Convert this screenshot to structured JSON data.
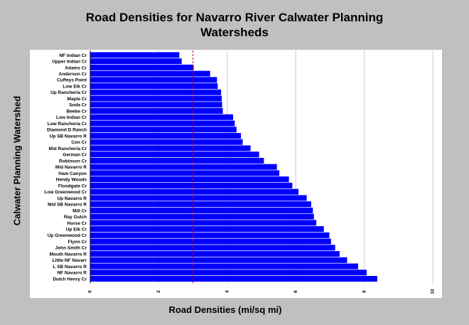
{
  "chart_data": {
    "type": "bar",
    "orientation": "horizontal",
    "title_lines": [
      "Road Densities for Navarro River Calwater Planning",
      "Watersheds"
    ],
    "xlabel": "Road Densities (mi/sq mi)",
    "ylabel": "Calwater Planning Watershed",
    "xlim": [
      0,
      10
    ],
    "xticks": [
      "0",
      "2",
      "4",
      "6",
      "8",
      "10"
    ],
    "grid": "vertical",
    "bar_color": "#0000ff",
    "reference_line": {
      "value": 3.0,
      "color": "#cc0000",
      "style": "dashed"
    },
    "categories": [
      "NF Indian Cr",
      "Upper Indian Cr",
      "Adams Cr",
      "Anderson Cr",
      "Cuffeys Point",
      "Low Elk Cr",
      "Up Rancheria Cr",
      "Maple Cr",
      "Soda Cr",
      "Beebe Cr",
      "Low Indian Cr",
      "Low Rancheria Cr",
      "Diamond D Ranch",
      "Up SB Navarro R",
      "Con Cr",
      "Mid Rancheria Cr",
      "German Cr",
      "Robinson Cr",
      "Mid Navarro R",
      "Ham Canyon",
      "Hendy Woods",
      "Floodgate Cr",
      "Low Greenwood Cr",
      "Up Navarro R",
      "Mid SB Navarro R",
      "Mill Cr",
      "Ray Gulch",
      "Horse Cr",
      "Up Elk Cr",
      "Up Greenwood Cr",
      "Flynn Cr",
      "John Smith Cr",
      "Mouth Navarro R",
      "Little NF Navarr",
      "L SB Navarro R",
      "NF Navarro R",
      "Dutch Henry Cr"
    ],
    "values": [
      2.6,
      2.67,
      3.02,
      3.5,
      3.7,
      3.72,
      3.82,
      3.84,
      3.85,
      3.87,
      4.17,
      4.22,
      4.27,
      4.4,
      4.45,
      4.68,
      4.93,
      5.07,
      5.45,
      5.52,
      5.8,
      5.9,
      6.08,
      6.32,
      6.45,
      6.5,
      6.53,
      6.6,
      6.82,
      6.98,
      7.03,
      7.15,
      7.28,
      7.5,
      7.82,
      8.07,
      8.38
    ]
  }
}
